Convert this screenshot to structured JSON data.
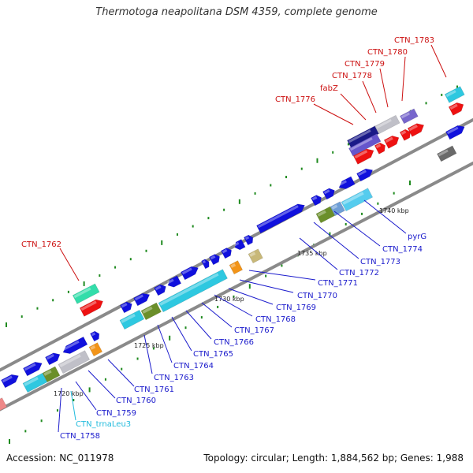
{
  "title": "Thermotoga neapolitana DSM 4359, complete genome",
  "footer": {
    "accession": "Accession: NC_011978",
    "summary": "Topology: circular; Length: 1,884,562 bp; Genes: 1,988"
  },
  "colors": {
    "background": "#ffffff",
    "backbone": "#8a8a8a",
    "cds": "#1010dd",
    "label_blue": "#1a1acc",
    "label_red": "#cc1010",
    "label_cyan": "#22bbdd",
    "tick": "#1e8a1e",
    "gene_cyan": "#2ec8e0",
    "gene_olive": "#6b8f2a",
    "gene_gray": "#c0c0c8",
    "gene_orange": "#f29418",
    "gene_red": "#ee1111",
    "gene_green": "#33ddaa"
  },
  "kbp_markers": [
    "1720 kbp",
    "1725 kbp",
    "1730 kbp",
    "1735 kbp",
    "1740 kbp"
  ],
  "gene_labels": [
    {
      "text": "CTN_1758",
      "color": "blue"
    },
    {
      "text": "CTN_trnaLeu3",
      "color": "cyan"
    },
    {
      "text": "CTN_1759",
      "color": "blue"
    },
    {
      "text": "CTN_1760",
      "color": "blue"
    },
    {
      "text": "CTN_1761",
      "color": "blue"
    },
    {
      "text": "CTN_1763",
      "color": "blue"
    },
    {
      "text": "CTN_1764",
      "color": "blue"
    },
    {
      "text": "CTN_1765",
      "color": "blue"
    },
    {
      "text": "CTN_1766",
      "color": "blue"
    },
    {
      "text": "CTN_1767",
      "color": "blue"
    },
    {
      "text": "CTN_1768",
      "color": "blue"
    },
    {
      "text": "CTN_1769",
      "color": "blue"
    },
    {
      "text": "CTN_1770",
      "color": "blue"
    },
    {
      "text": "CTN_1771",
      "color": "blue"
    },
    {
      "text": "CTN_1772",
      "color": "blue"
    },
    {
      "text": "CTN_1773",
      "color": "blue"
    },
    {
      "text": "CTN_1774",
      "color": "blue"
    },
    {
      "text": "pyrG",
      "color": "blue"
    },
    {
      "text": "CTN_1762",
      "color": "red"
    },
    {
      "text": "CTN_1776",
      "color": "red"
    },
    {
      "text": "fabZ",
      "color": "red"
    },
    {
      "text": "CTN_1778",
      "color": "red"
    },
    {
      "text": "CTN_1779",
      "color": "red"
    },
    {
      "text": "CTN_1780",
      "color": "red"
    },
    {
      "text": "CTN_1783",
      "color": "red"
    }
  ]
}
